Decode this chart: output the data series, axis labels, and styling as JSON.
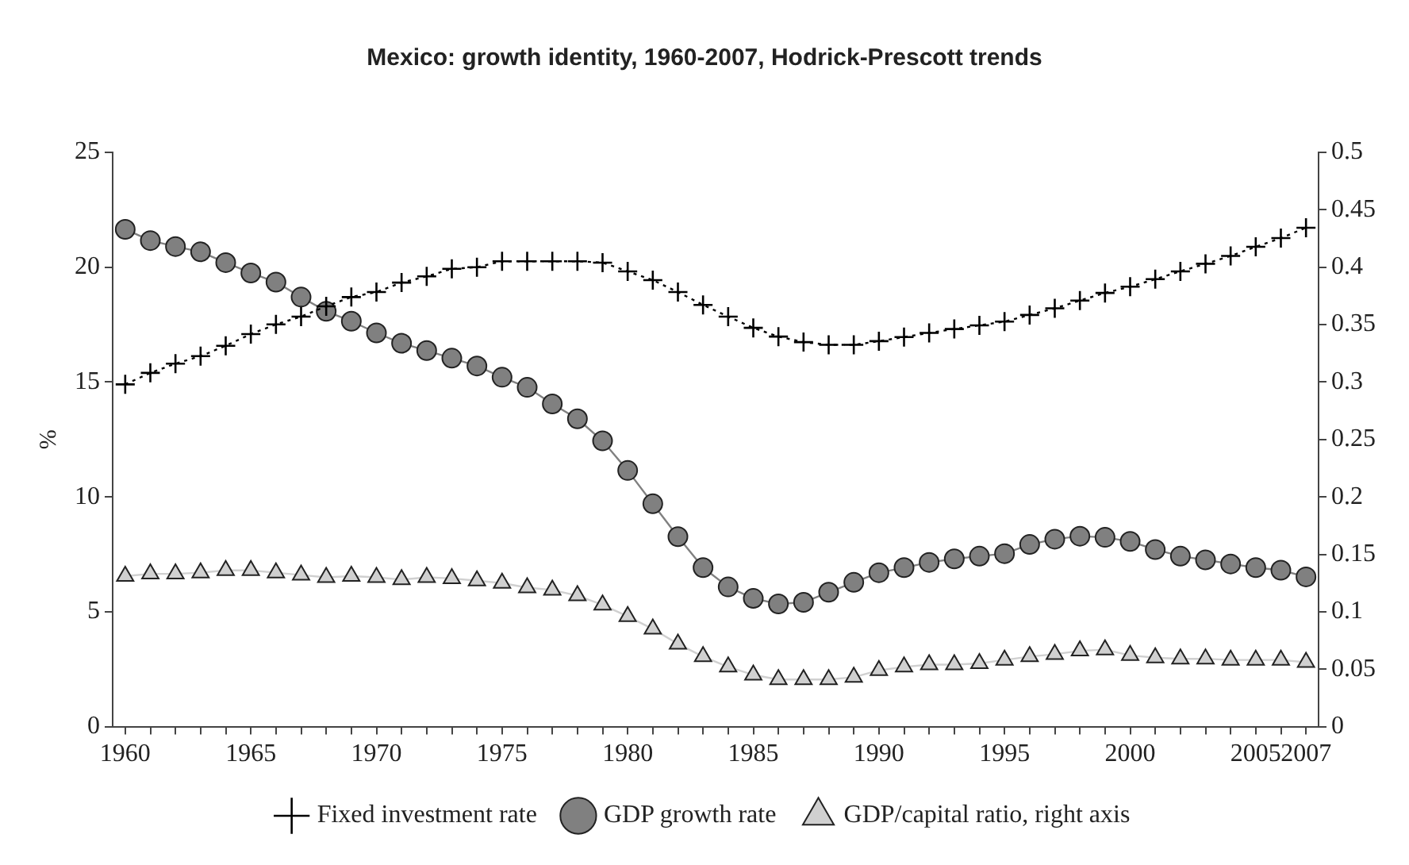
{
  "chart_data": {
    "type": "line",
    "title": "Mexico: growth identity, 1960-2007, Hodrick-Prescott trends",
    "ylabel": "%",
    "x": [
      1960,
      1961,
      1962,
      1963,
      1964,
      1965,
      1966,
      1967,
      1968,
      1969,
      1970,
      1971,
      1972,
      1973,
      1974,
      1975,
      1976,
      1977,
      1978,
      1979,
      1980,
      1981,
      1982,
      1983,
      1984,
      1985,
      1986,
      1987,
      1988,
      1989,
      1990,
      1991,
      1992,
      1993,
      1994,
      1995,
      1996,
      1997,
      1998,
      1999,
      2000,
      2001,
      2002,
      2003,
      2004,
      2005,
      2006,
      2007
    ],
    "series": [
      {
        "name": "Fixed investment rate",
        "color": "#000000",
        "marker": "cross",
        "line_style": "dotted",
        "values": [
          14.9,
          15.4,
          15.8,
          16.13,
          16.58,
          17.09,
          17.51,
          17.85,
          18.3,
          18.7,
          18.92,
          19.33,
          19.6,
          19.93,
          20.0,
          20.26,
          20.26,
          20.26,
          20.26,
          20.2,
          19.82,
          19.44,
          18.92,
          18.36,
          17.85,
          17.36,
          16.98,
          16.74,
          16.62,
          16.62,
          16.78,
          16.96,
          17.14,
          17.31,
          17.47,
          17.63,
          17.92,
          18.21,
          18.55,
          18.88,
          19.15,
          19.48,
          19.82,
          20.15,
          20.49,
          20.89,
          21.27,
          21.72
        ]
      },
      {
        "name": "GDP growth rate",
        "color": "#808080",
        "marker": "circle",
        "line_style": "solid",
        "values": [
          21.65,
          21.16,
          20.9,
          20.67,
          20.2,
          19.75,
          19.35,
          18.7,
          18.08,
          17.65,
          17.14,
          16.69,
          16.37,
          16.04,
          15.7,
          15.21,
          14.77,
          14.05,
          13.4,
          12.44,
          11.15,
          9.7,
          8.27,
          6.92,
          6.08,
          5.58,
          5.34,
          5.41,
          5.85,
          6.28,
          6.7,
          6.92,
          7.15,
          7.3,
          7.42,
          7.53,
          7.93,
          8.16,
          8.29,
          8.24,
          8.06,
          7.71,
          7.42,
          7.26,
          7.08,
          6.92,
          6.81,
          6.52
        ]
      },
      {
        "name": "GDP/capital ratio, right axis",
        "color": "#d0d0d0",
        "marker": "triangle",
        "line_style": "solid",
        "axis": "y2",
        "values": [
          0.131,
          0.133,
          0.133,
          0.134,
          0.136,
          0.136,
          0.134,
          0.132,
          0.13,
          0.131,
          0.13,
          0.128,
          0.13,
          0.129,
          0.127,
          0.125,
          0.121,
          0.119,
          0.114,
          0.106,
          0.096,
          0.085,
          0.072,
          0.061,
          0.052,
          0.045,
          0.041,
          0.041,
          0.041,
          0.043,
          0.049,
          0.052,
          0.054,
          0.054,
          0.055,
          0.058,
          0.061,
          0.063,
          0.066,
          0.067,
          0.062,
          0.06,
          0.059,
          0.059,
          0.058,
          0.058,
          0.058,
          0.056
        ]
      }
    ],
    "xlim": [
      1959.5,
      2007.5
    ],
    "xticks": [
      1960,
      {
        "value": 1961,
        "label": null
      },
      {
        "value": 1962,
        "label": null
      },
      {
        "value": 1963,
        "label": null
      },
      {
        "value": 1964,
        "label": null
      },
      1965,
      {
        "value": 1966,
        "label": null
      },
      {
        "value": 1967,
        "label": null
      },
      {
        "value": 1968,
        "label": null
      },
      {
        "value": 1969,
        "label": null
      },
      1970,
      {
        "value": 1971,
        "label": null
      },
      {
        "value": 1972,
        "label": null
      },
      {
        "value": 1973,
        "label": null
      },
      {
        "value": 1974,
        "label": null
      },
      1975,
      {
        "value": 1976,
        "label": null
      },
      {
        "value": 1977,
        "label": null
      },
      {
        "value": 1978,
        "label": null
      },
      {
        "value": 1979,
        "label": null
      },
      1980,
      {
        "value": 1981,
        "label": null
      },
      {
        "value": 1982,
        "label": null
      },
      {
        "value": 1983,
        "label": null
      },
      {
        "value": 1984,
        "label": null
      },
      1985,
      {
        "value": 1986,
        "label": null
      },
      {
        "value": 1987,
        "label": null
      },
      {
        "value": 1988,
        "label": null
      },
      {
        "value": 1989,
        "label": null
      },
      1990,
      {
        "value": 1991,
        "label": null
      },
      {
        "value": 1992,
        "label": null
      },
      {
        "value": 1993,
        "label": null
      },
      {
        "value": 1994,
        "label": null
      },
      1995,
      {
        "value": 1996,
        "label": null
      },
      {
        "value": 1997,
        "label": null
      },
      {
        "value": 1998,
        "label": null
      },
      {
        "value": 1999,
        "label": null
      },
      2000,
      {
        "value": 2001,
        "label": null
      },
      {
        "value": 2002,
        "label": null
      },
      {
        "value": 2003,
        "label": null
      },
      {
        "value": 2004,
        "label": null
      },
      2005,
      {
        "value": 2006,
        "label": null
      },
      2007
    ],
    "ylim": [
      0,
      25
    ],
    "yticks": [
      0,
      5,
      10,
      15,
      20,
      25
    ],
    "y2lim": [
      0,
      0.5
    ],
    "y2ticks": [
      0,
      0.05,
      0.1,
      0.15,
      0.2,
      0.25,
      0.3,
      0.35,
      0.4,
      0.45,
      0.5
    ],
    "grid": false,
    "legend": "bottom"
  }
}
